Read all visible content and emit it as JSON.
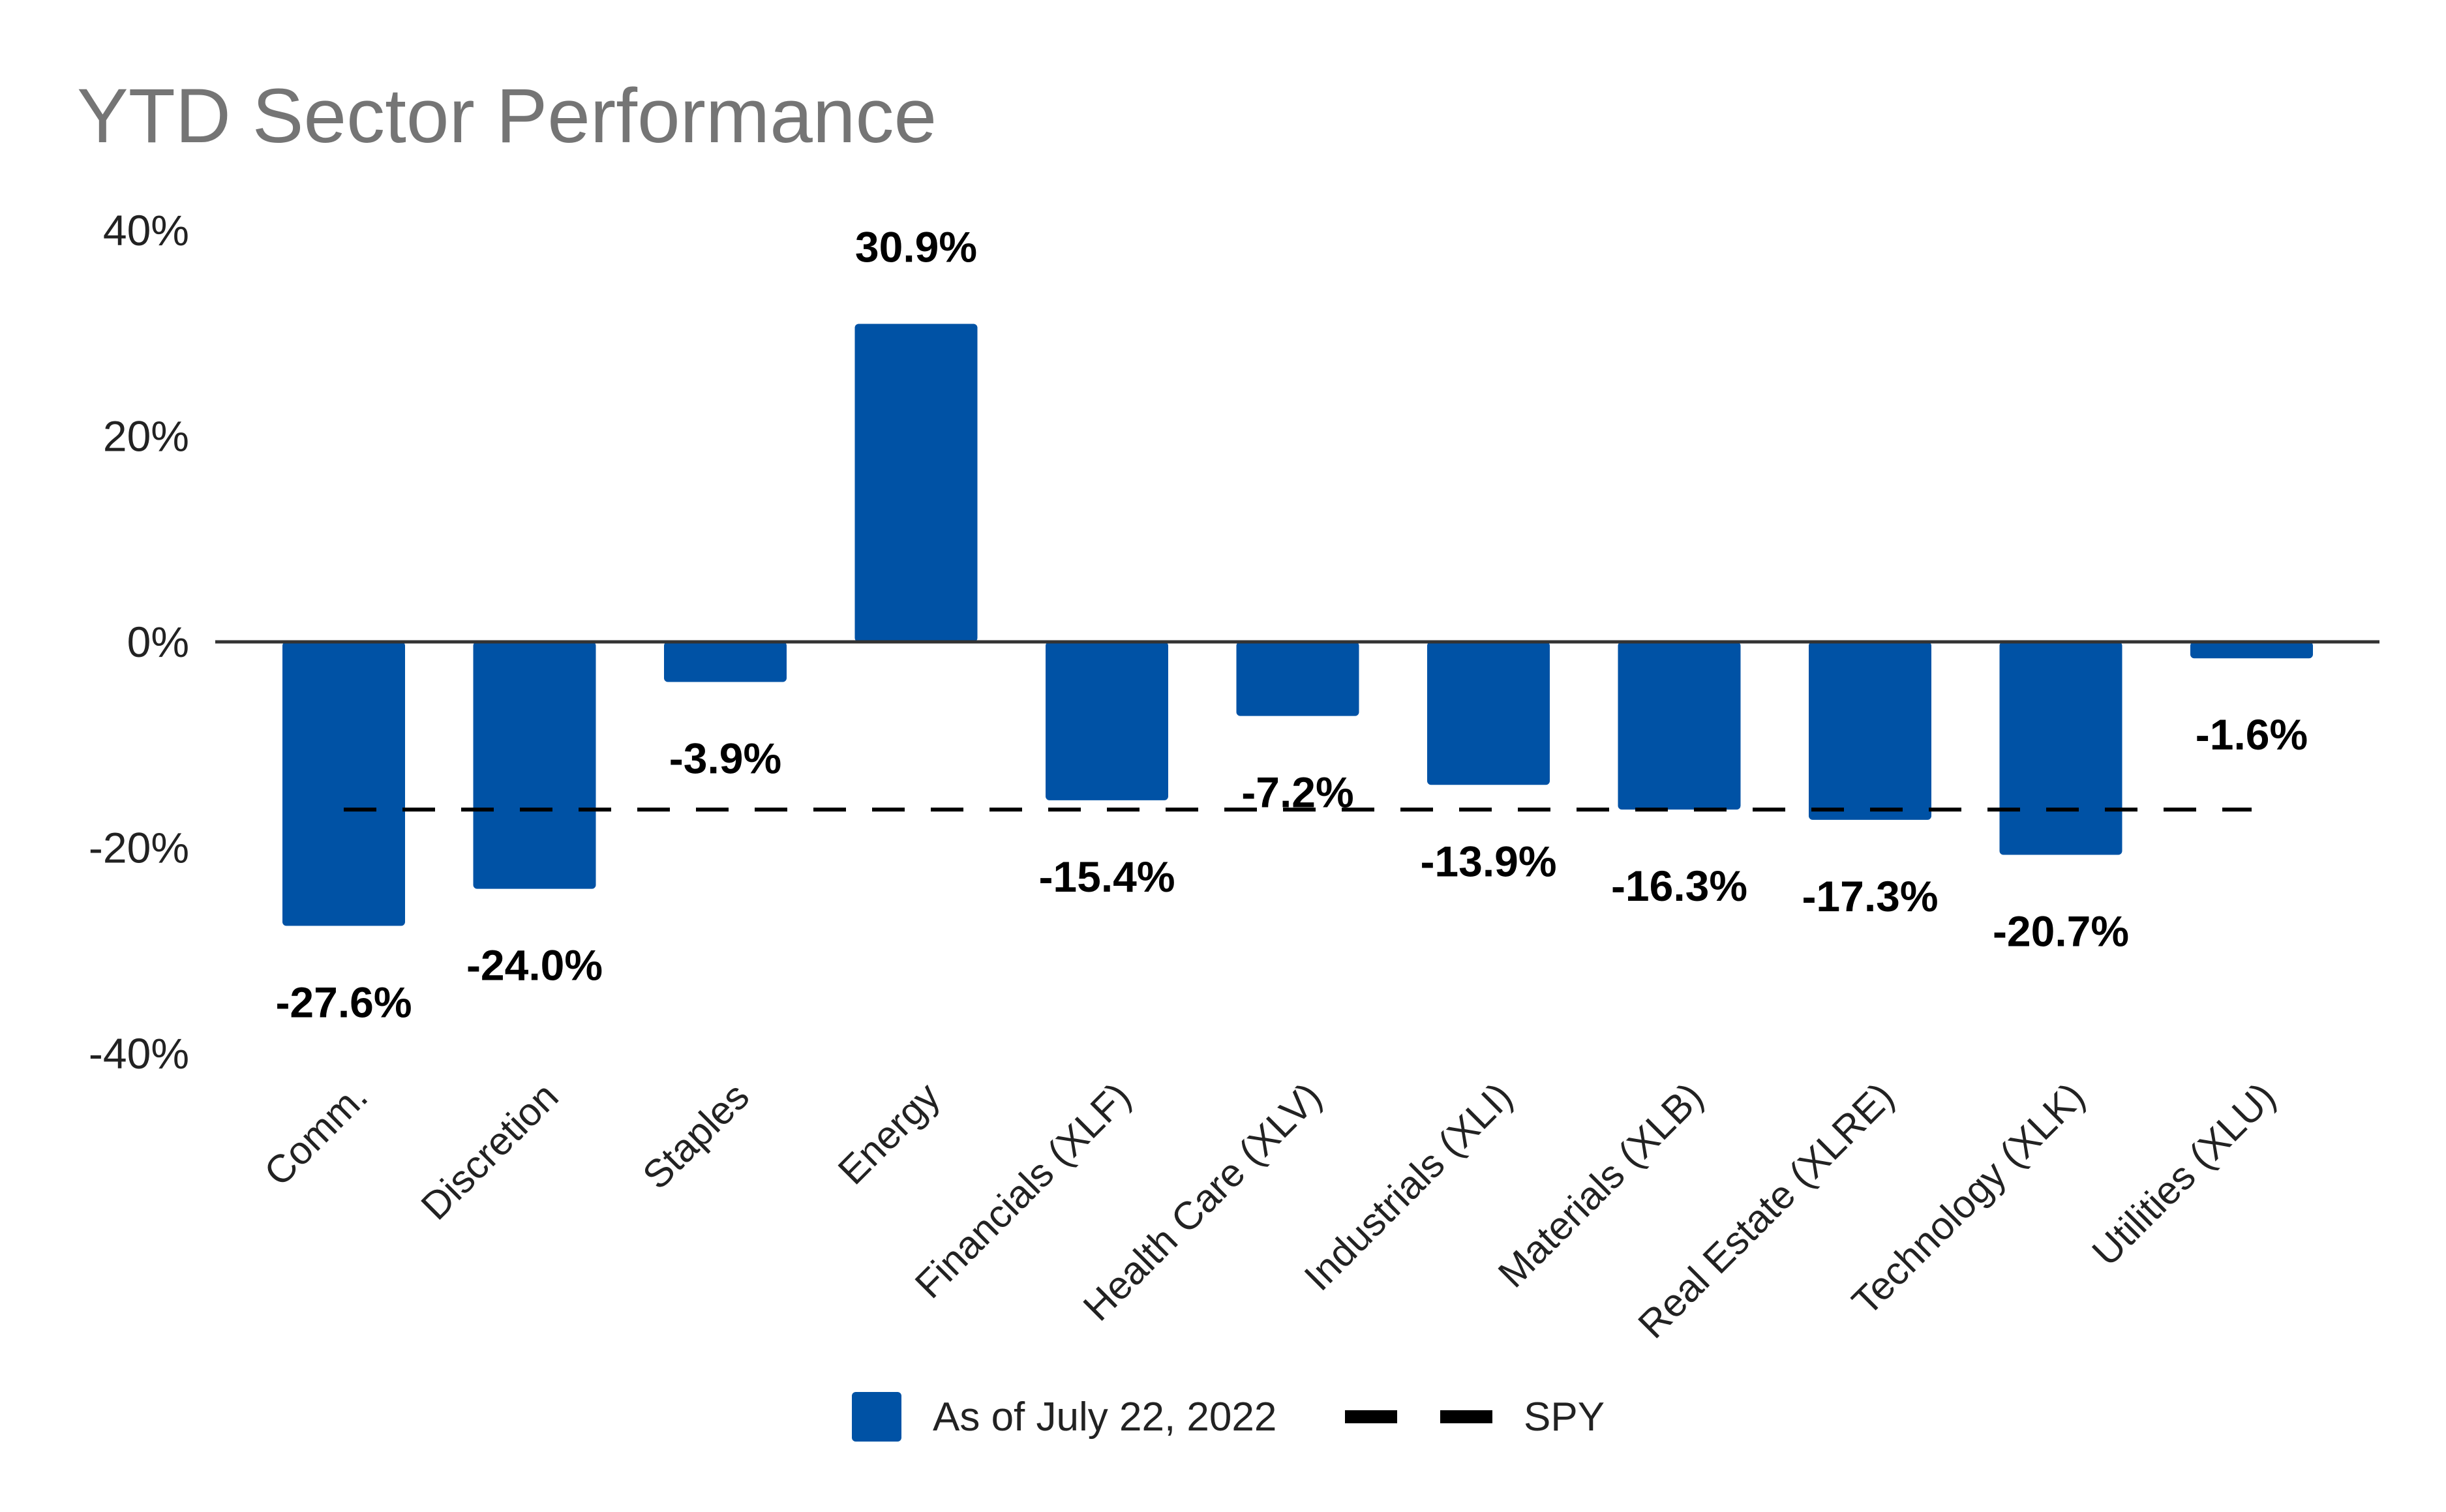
{
  "chart_data": {
    "type": "bar",
    "title": "YTD Sector Performance",
    "xlabel": "",
    "ylabel": "",
    "ylim": [
      -40,
      40
    ],
    "y_ticks": [
      40,
      20,
      0,
      -20,
      -40
    ],
    "y_tick_labels": [
      "40%",
      "20%",
      "0%",
      "-20%",
      "-40%"
    ],
    "categories": [
      "Comm.",
      "Discretion",
      "Staples",
      "Energy",
      "Financials (XLF)",
      "Health Care (XLV)",
      "Industrials (XLI)",
      "Materials (XLB)",
      "Real Estate (XLRE)",
      "Technology (XLK)",
      "Utilities (XLU)"
    ],
    "series": [
      {
        "name": "As of July 22, 2022",
        "type": "bar",
        "values": [
          -27.6,
          -24.0,
          -3.9,
          30.9,
          -15.4,
          -7.2,
          -13.9,
          -16.3,
          -17.3,
          -20.7,
          -1.6
        ],
        "labels": [
          "-27.6%",
          "-24.0%",
          "-3.9%",
          "30.9%",
          "-15.4%",
          "-7.2%",
          "-13.9%",
          "-16.3%",
          "-17.3%",
          "-20.7%",
          "-1.6%"
        ]
      },
      {
        "name": "SPY",
        "type": "reference-line",
        "value": -16.3
      }
    ],
    "grid": false,
    "legend_position": "bottom",
    "colors": {
      "bar": "#0052A5",
      "spy_line": "#000000",
      "zero_line": "#333333",
      "title": "#757575"
    }
  }
}
